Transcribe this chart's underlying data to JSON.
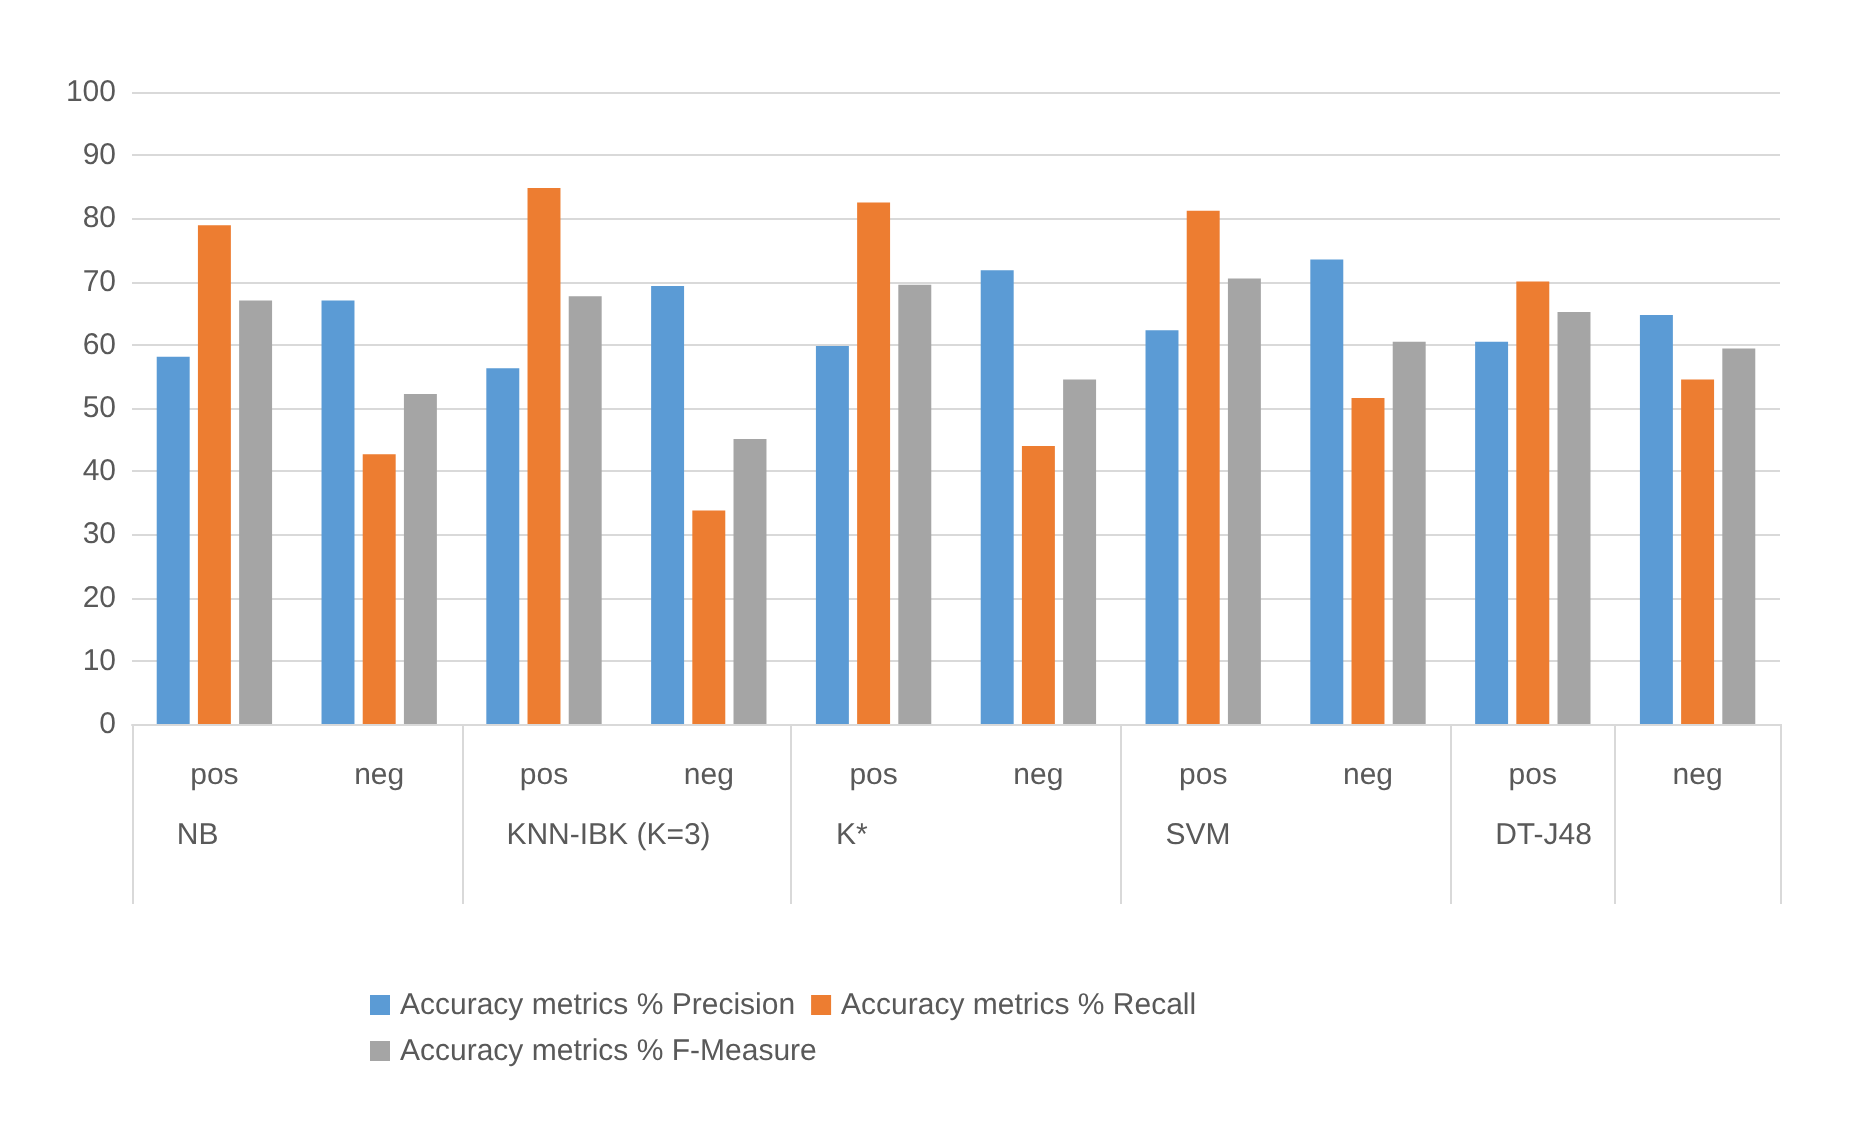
{
  "chart_data": {
    "type": "bar",
    "categories": [
      "pos",
      "neg",
      "pos",
      "neg",
      "pos",
      "neg",
      "pos",
      "neg",
      "pos",
      "neg"
    ],
    "annotations": [
      "NB",
      "KNN-IBK (K=3)",
      "K*",
      "SVM",
      "DT-J48"
    ],
    "series": [
      {
        "name": "Accuracy metrics % Precision",
        "color": "#5b9bd5",
        "values": [
          58.1,
          67.0,
          56.3,
          69.3,
          59.8,
          71.8,
          62.3,
          73.5,
          60.5,
          64.7
        ]
      },
      {
        "name": "Accuracy metrics % Recall",
        "color": "#ed7d31",
        "values": [
          78.9,
          42.7,
          84.8,
          33.8,
          82.5,
          44.0,
          81.2,
          51.6,
          70.0,
          54.5
        ]
      },
      {
        "name": "Accuracy metrics % F-Measure",
        "color": "#a5a5a5",
        "values": [
          67.0,
          52.2,
          67.7,
          45.1,
          69.5,
          54.5,
          70.5,
          60.5,
          65.2,
          59.4
        ]
      }
    ],
    "ylim": [
      0,
      100
    ],
    "yticks": [
      0,
      10,
      20,
      30,
      40,
      50,
      60,
      70,
      80,
      90,
      100
    ],
    "grid": "y",
    "legend": "bottom"
  }
}
